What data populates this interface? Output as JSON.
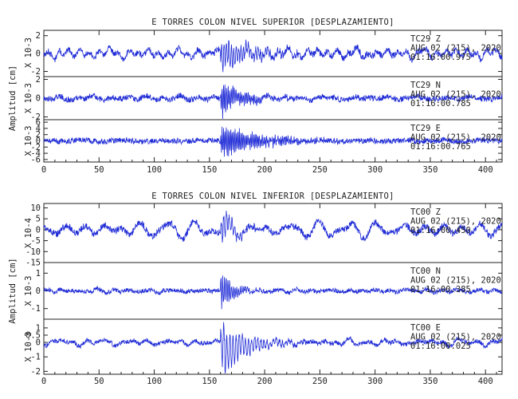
{
  "chart_data": [
    {
      "type": "line",
      "title": "E TORRES COLON NIVEL SUPERIOR [DESPLAZAMIENTO]",
      "ylabel": "Amplitud [cm]",
      "xlim": [
        0,
        415
      ],
      "xticks": [
        0,
        50,
        100,
        150,
        200,
        250,
        300,
        350,
        400
      ],
      "traces": [
        {
          "ylabel": "X 10-3",
          "ylim": [
            -2.4,
            2.6
          ],
          "yticks": [
            "2",
            "0",
            "-2"
          ],
          "yticks_values": [
            2,
            0,
            -2
          ],
          "annotation": [
            "TC29   Z",
            "AUG 02 (215), 2020",
            "01:16:00.975"
          ],
          "style": {
            "base": 0.35,
            "burst": 1.9,
            "bg": 1.0,
            "period": 2.2,
            "decay": 30,
            "seed": 11
          }
        },
        {
          "ylabel": "X 10-3",
          "ylim": [
            -2.3,
            2.3
          ],
          "yticks": [
            "2",
            "0",
            "-2"
          ],
          "yticks_values": [
            2,
            0,
            -2
          ],
          "annotation": [
            "TC29   N",
            "AUG 02 (215), 2020",
            "01:16:00.785"
          ],
          "style": {
            "base": 0.3,
            "burst": 1.9,
            "bg": 0.35,
            "period": 1.4,
            "decay": 20,
            "seed": 23
          }
        },
        {
          "ylabel": "X 10-3",
          "ylim": [
            -6.8,
            6.8
          ],
          "yticks": [
            "6",
            "4",
            "2",
            "0",
            "-2",
            "-4",
            "-6"
          ],
          "yticks_values": [
            6,
            4,
            2,
            0,
            -2,
            -4,
            -6
          ],
          "annotation": [
            "TC29   E",
            "AUG 02 (215), 2020",
            "01:16:00.765"
          ],
          "style": {
            "base": 0.9,
            "burst": 5.8,
            "bg": 0.6,
            "period": 1.3,
            "decay": 35,
            "seed": 37
          }
        }
      ]
    },
    {
      "type": "line",
      "title": "E TORRES COLON NIVEL INFERIOR [DESPLAZAMIENTO]",
      "ylabel": "Amplitud [cm]",
      "xlim": [
        0,
        415
      ],
      "xticks": [
        0,
        50,
        100,
        150,
        200,
        250,
        300,
        350,
        400
      ],
      "traces": [
        {
          "ylabel": "X 10-4",
          "ylim": [
            -15,
            12
          ],
          "yticks": [
            "10",
            "5",
            "0",
            "-5",
            "-10",
            "-15"
          ],
          "yticks_values": [
            10,
            5,
            0,
            -5,
            -10,
            -15
          ],
          "annotation": [
            "TC00   Z",
            "AUG 02 (215), 2020",
            "01:16:00.450"
          ],
          "style": {
            "base": 1.5,
            "burst": 8.5,
            "bg": 5.0,
            "period": 2.5,
            "decay": 12,
            "seed": 51
          }
        },
        {
          "ylabel": "X 10-3",
          "ylim": [
            -1.6,
            1.6
          ],
          "yticks": [
            "1",
            "0",
            "-1"
          ],
          "yticks_values": [
            1,
            0,
            -1
          ],
          "annotation": [
            "TC00   N",
            "AUG 02 (215), 2020",
            "01:16:00.385"
          ],
          "style": {
            "base": 0.12,
            "burst": 1.3,
            "bg": 0.15,
            "period": 1.6,
            "decay": 10,
            "seed": 67
          }
        },
        {
          "ylabel": "X 10-3",
          "ylim": [
            -2.2,
            1.6
          ],
          "yticks": [
            "1",
            "0.5",
            "0",
            "-1",
            "-2"
          ],
          "yticks_values": [
            1,
            0.5,
            0,
            -1,
            -2
          ],
          "annotation": [
            "TC00   E",
            "AUG 02 (215), 2020",
            "01:16:00.025"
          ],
          "style": {
            "base": 0.15,
            "burst": 1.8,
            "bg": 0.3,
            "period": 2.8,
            "decay": 25,
            "offset_dip": -0.9,
            "seed": 83
          }
        }
      ]
    }
  ],
  "colors": {
    "trace": "#1f2bd6",
    "axis": "#222222"
  }
}
